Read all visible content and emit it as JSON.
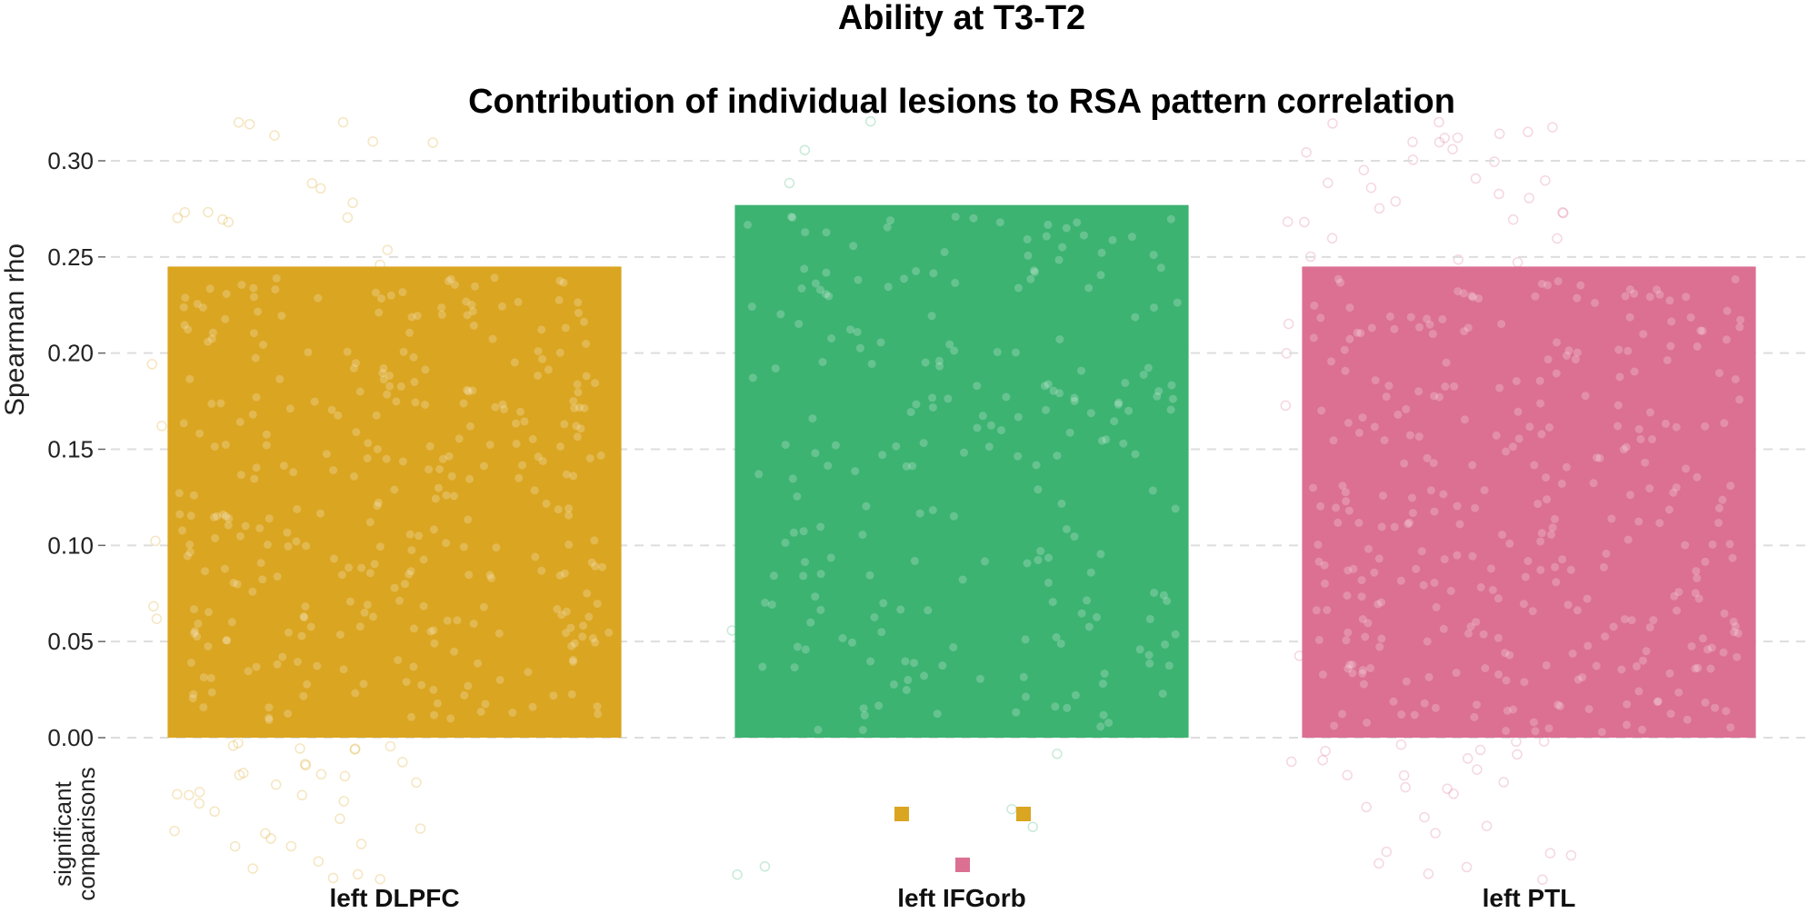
{
  "chart_data": {
    "type": "bar",
    "title": "Ability at T3-T2",
    "subtitle": "Contribution of individual lesions to RSA pattern correlation",
    "ylabel": "Spearman rho",
    "xlabel": "",
    "ylim": [
      0,
      0.32
    ],
    "yticks": [
      0.0,
      0.05,
      0.1,
      0.15,
      0.2,
      0.25,
      0.3
    ],
    "ytick_labels": [
      "0.00",
      "0.05",
      "0.10",
      "0.15",
      "0.20",
      "0.25",
      "0.30"
    ],
    "grid": true,
    "categories": [
      "left DLPFC",
      "left IFGorb",
      "left PTL"
    ],
    "values": [
      0.245,
      0.277,
      0.245
    ],
    "colors": [
      "#DAA520",
      "#3CB371",
      "#DB7093"
    ],
    "significance": {
      "label_line1": "significant",
      "label_line2": "comparisons",
      "markers": [
        {
          "category": "left IFGorb",
          "compared_with": "left DLPFC",
          "color": "#DAA520"
        },
        {
          "category": "left IFGorb",
          "compared_with": "left DLPFC",
          "color": "#DAA520"
        },
        {
          "category": "left IFGorb",
          "compared_with": "left PTL",
          "color": "#DB7093"
        }
      ]
    }
  }
}
